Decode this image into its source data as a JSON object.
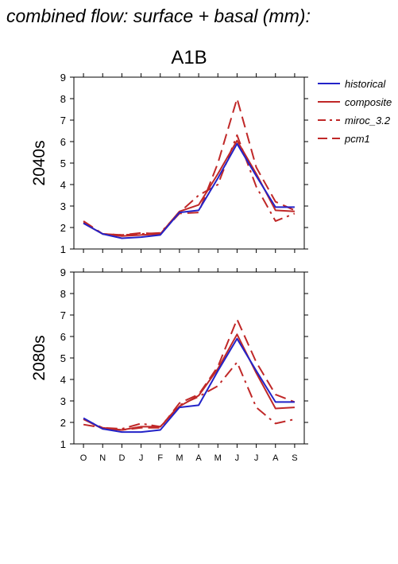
{
  "title": "combined flow: surface + basal (mm):",
  "subtitle": "A1B",
  "colors": {
    "historical": "#2323c8",
    "scenario": "#c02828"
  },
  "legend": [
    {
      "name": "historical",
      "color": "#2323c8",
      "dash": "solid"
    },
    {
      "name": "composite",
      "color": "#c02828",
      "dash": "solid"
    },
    {
      "name": "miroc_3.2",
      "color": "#c02828",
      "dash": "dashdot"
    },
    {
      "name": "pcm1",
      "color": "#c02828",
      "dash": "dash"
    }
  ],
  "chart_data": [
    {
      "type": "line",
      "panel_label": "2040s",
      "categories": [
        "O",
        "N",
        "D",
        "J",
        "F",
        "M",
        "A",
        "M",
        "J",
        "J",
        "A",
        "S"
      ],
      "ylim": [
        1,
        9
      ],
      "yticks": [
        1,
        2,
        3,
        4,
        5,
        6,
        7,
        8,
        9
      ],
      "series": [
        {
          "name": "historical",
          "values": [
            2.2,
            1.7,
            1.5,
            1.55,
            1.65,
            2.7,
            2.8,
            4.3,
            5.9,
            4.4,
            2.95,
            2.95
          ]
        },
        {
          "name": "composite",
          "values": [
            2.2,
            1.7,
            1.6,
            1.65,
            1.7,
            2.75,
            3.05,
            4.5,
            6.05,
            4.5,
            2.8,
            2.75
          ]
        },
        {
          "name": "miroc_3.2",
          "values": [
            2.25,
            1.7,
            1.65,
            1.7,
            1.75,
            2.7,
            3.5,
            4.0,
            6.3,
            3.9,
            2.3,
            2.65
          ]
        },
        {
          "name": "pcm1",
          "values": [
            2.3,
            1.7,
            1.65,
            1.75,
            1.7,
            2.65,
            2.7,
            5.0,
            8.0,
            4.8,
            3.2,
            2.8
          ]
        }
      ]
    },
    {
      "type": "line",
      "panel_label": "2080s",
      "categories": [
        "O",
        "N",
        "D",
        "J",
        "F",
        "M",
        "A",
        "M",
        "J",
        "J",
        "A",
        "S"
      ],
      "ylim": [
        1,
        9
      ],
      "yticks": [
        1,
        2,
        3,
        4,
        5,
        6,
        7,
        8,
        9
      ],
      "series": [
        {
          "name": "historical",
          "values": [
            2.2,
            1.7,
            1.55,
            1.55,
            1.65,
            2.7,
            2.8,
            4.4,
            5.9,
            4.4,
            2.95,
            2.95
          ]
        },
        {
          "name": "composite",
          "values": [
            2.15,
            1.7,
            1.65,
            1.8,
            1.8,
            2.75,
            3.25,
            4.5,
            6.1,
            4.3,
            2.65,
            2.7
          ]
        },
        {
          "name": "miroc_3.2",
          "values": [
            1.9,
            1.75,
            1.7,
            1.95,
            1.8,
            2.8,
            3.2,
            3.7,
            4.8,
            2.7,
            1.95,
            2.15
          ]
        },
        {
          "name": "pcm1",
          "values": [
            2.15,
            1.75,
            1.65,
            1.75,
            1.75,
            2.9,
            3.3,
            4.6,
            6.8,
            4.8,
            3.3,
            2.95
          ]
        }
      ]
    }
  ]
}
